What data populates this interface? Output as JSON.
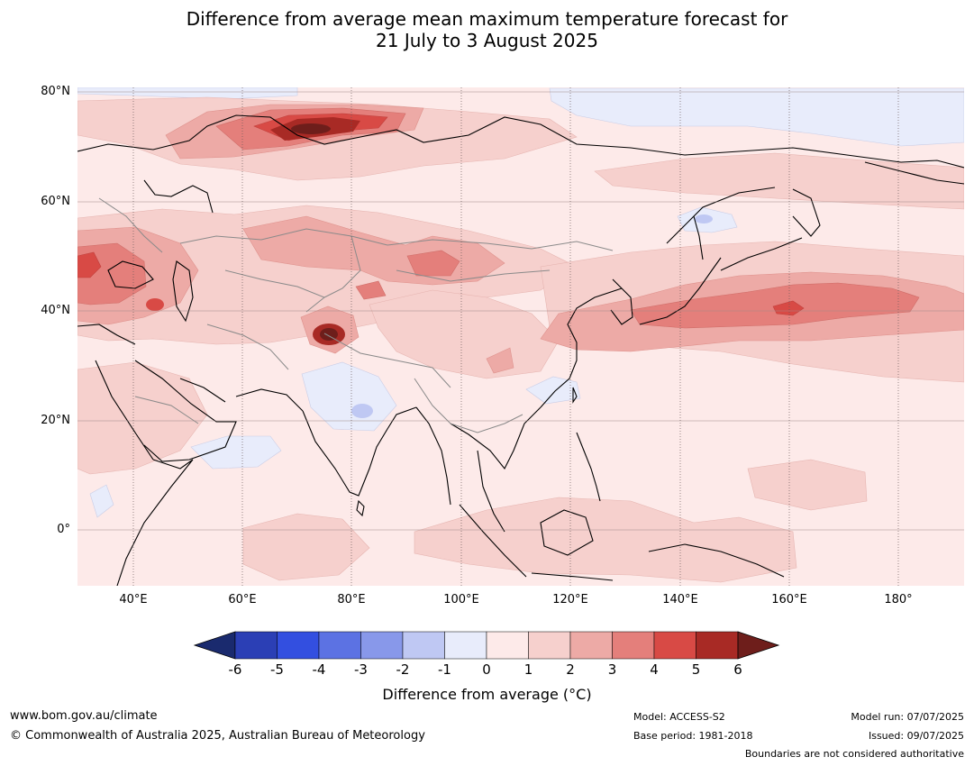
{
  "title_line1": "Difference from average mean maximum temperature forecast for",
  "title_line2": "21 July to 3 August 2025",
  "lat_labels": [
    "80°N",
    "60°N",
    "40°N",
    "20°N",
    "0°"
  ],
  "lon_labels": [
    "40°E",
    "60°E",
    "80°E",
    "100°E",
    "120°E",
    "140°E",
    "160°E",
    "180°"
  ],
  "colorbar": {
    "title": "Difference from average (°C)",
    "ticks": [
      "-6",
      "-5",
      "-4",
      "-3",
      "-2",
      "-1",
      "0",
      "1",
      "2",
      "3",
      "4",
      "5",
      "6"
    ],
    "colors": [
      "#1a2a6e",
      "#2b3fb5",
      "#334fe0",
      "#5c72e3",
      "#8898ea",
      "#bfc8f3",
      "#e8ecfb",
      "#fdeae9",
      "#f6d0cd",
      "#edaaa6",
      "#e47f7b",
      "#d84a45",
      "#a82a25",
      "#6e1e1b"
    ]
  },
  "footer": {
    "site": "www.bom.gov.au/climate",
    "copyright": "© Commonwealth of Australia 2025, Australian Bureau of Meteorology",
    "model": "Model: ACCESS-S2",
    "base_period": "Base period: 1981-2018",
    "model_run": "Model run: 07/07/2025",
    "issued": "Issued: 09/07/2025",
    "disclaimer": "Boundaries are not considered authoritative"
  }
}
